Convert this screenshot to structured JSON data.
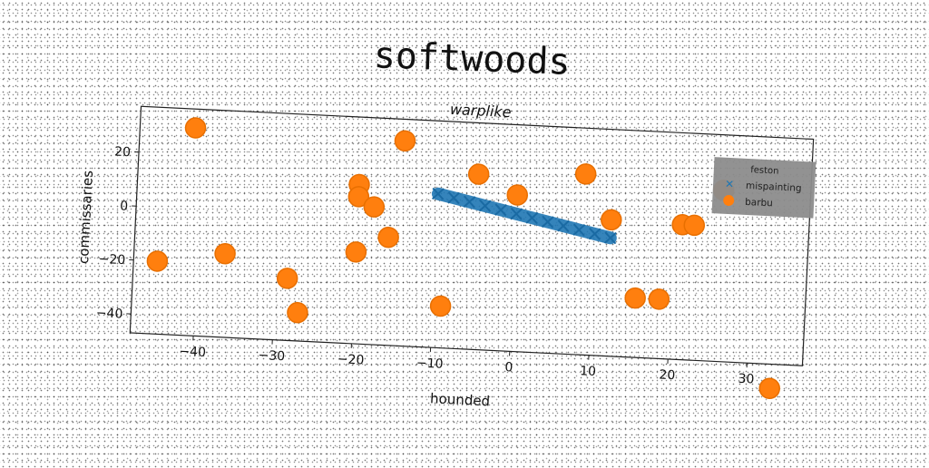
{
  "chart_data": {
    "type": "scatter",
    "title": "softwoods",
    "subtitle": "warplike",
    "xlabel": "hounded",
    "ylabel": "commissaries",
    "xlim": [
      -48,
      37
    ],
    "ylim": [
      -47,
      37
    ],
    "xticks": [
      -40,
      -30,
      -20,
      -10,
      0,
      10,
      20,
      30
    ],
    "yticks": [
      20,
      0,
      -20,
      -40
    ],
    "grid": false,
    "legend": {
      "title": "feston",
      "placement": "top-right",
      "entries": [
        "mispainting",
        "barbu"
      ]
    },
    "colors": {
      "mispainting": "#1f77b4",
      "barbu": "#ff7f0e",
      "legend_bg": "#8c8c8c"
    },
    "series": [
      {
        "name": "mispainting",
        "style": "dense band of x markers",
        "x": [
          -10,
          -8,
          -6,
          -4,
          -2,
          0,
          2,
          4,
          6,
          8,
          10,
          12
        ],
        "y": [
          10,
          8.8,
          7.6,
          6.4,
          5.2,
          4,
          2.8,
          1.6,
          0.4,
          -0.8,
          -2,
          -3.2
        ]
      },
      {
        "name": "barbu",
        "style": "large circle markers",
        "x": [
          -41,
          -14.5,
          -5,
          8.5,
          0,
          -20,
          -20,
          -18,
          -16,
          -20,
          -45,
          -36.5,
          -28.5,
          -27,
          -9,
          12,
          15.5,
          18.5,
          21,
          22.5,
          26,
          33
        ],
        "y": [
          30,
          29,
          18,
          20,
          11,
          12,
          7.5,
          4,
          -7,
          -13,
          -20,
          -16,
          -24,
          -36.5,
          -31.5,
          3.5,
          -25,
          -25,
          3,
          3,
          16.5,
          -56
        ]
      }
    ]
  }
}
